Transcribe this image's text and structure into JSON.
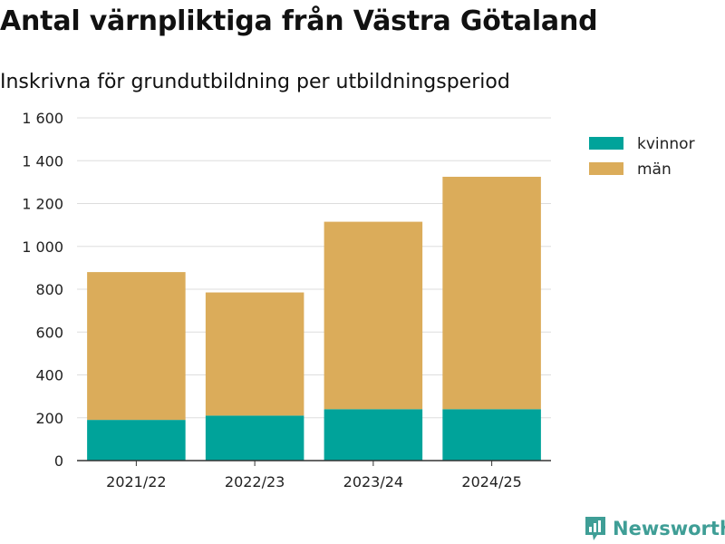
{
  "title": "Antal värnpliktiga från Västra Götaland",
  "subtitle": "Inskrivna för grundutbildning per utbildningsperiod",
  "brand": {
    "name": "Newsworthy",
    "color": "#3f9e96"
  },
  "colors": {
    "kvinnor": "#00a39a",
    "man": "#dbac5a",
    "grid": "#dddddd",
    "axis": "#333333"
  },
  "chart_data": {
    "type": "bar",
    "stacked": true,
    "title": "Antal värnpliktiga från Västra Götaland",
    "subtitle": "Inskrivna för grundutbildning per utbildningsperiod",
    "xlabel": "",
    "ylabel": "",
    "ylim": [
      0,
      1600
    ],
    "yticks": [
      0,
      200,
      400,
      600,
      800,
      1000,
      1200,
      1400,
      1600
    ],
    "ytick_labels": [
      "0",
      "200",
      "400",
      "600",
      "800",
      "1 000",
      "1 200",
      "1 400",
      "1 600"
    ],
    "grid": true,
    "legend": "top-right",
    "categories": [
      "2021/22",
      "2022/23",
      "2023/24",
      "2024/25"
    ],
    "series": [
      {
        "name": "kvinnor",
        "values": [
          190,
          210,
          240,
          240
        ]
      },
      {
        "name": "män",
        "values": [
          690,
          575,
          875,
          1085
        ]
      }
    ]
  }
}
